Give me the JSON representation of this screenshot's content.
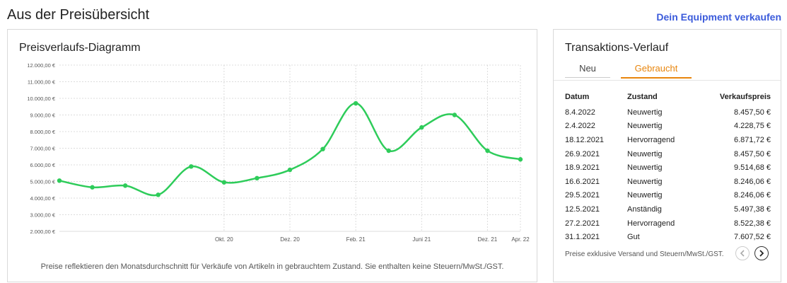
{
  "header": {
    "title": "Aus der Preisübersicht",
    "sell_link": "Dein Equipment verkaufen"
  },
  "chart_panel": {
    "title": "Preisverlaufs-Diagramm",
    "note": "Preise reflektieren den Monatsdurchschnitt für Verkäufe von Artikeln in gebrauchtem Zustand. Sie enthalten keine Steuern/MwSt./GST."
  },
  "chart_data": {
    "type": "line",
    "title": "",
    "xlabel": "",
    "ylabel": "",
    "ylim": [
      2000,
      12000
    ],
    "y_ticks": [
      "2.000,00 €",
      "3.000,00 €",
      "4.000,00 €",
      "5.000,00 €",
      "6.000,00 €",
      "7.000,00 €",
      "8.000,00 €",
      "9.000,00 €",
      "10.000,00 €",
      "11.000,00 €",
      "12.000,00 €"
    ],
    "x_tick_labels": [
      "Okt. 20",
      "Dez. 20",
      "Feb. 21",
      "Juni 21",
      "Dez. 21",
      "Apr. 22"
    ],
    "grid": true,
    "color": "#2ecc5a",
    "series": [
      {
        "values": [
          5050,
          4650,
          4750,
          4200,
          5900,
          4950,
          5200,
          5700,
          6950,
          9700,
          6850,
          8250,
          9000,
          6850,
          6330
        ]
      }
    ]
  },
  "tx_panel": {
    "title": "Transaktions-Verlauf",
    "tabs": {
      "new": "Neu",
      "used": "Gebraucht"
    },
    "columns": {
      "date": "Datum",
      "condition": "Zustand",
      "price": "Verkaufspreis"
    },
    "rows": [
      {
        "date": "8.4.2022",
        "condition": "Neuwertig",
        "price": "8.457,50 €"
      },
      {
        "date": "2.4.2022",
        "condition": "Neuwertig",
        "price": "4.228,75 €"
      },
      {
        "date": "18.12.2021",
        "condition": "Hervorragend",
        "price": "6.871,72 €"
      },
      {
        "date": "26.9.2021",
        "condition": "Neuwertig",
        "price": "8.457,50 €"
      },
      {
        "date": "18.9.2021",
        "condition": "Neuwertig",
        "price": "9.514,68 €"
      },
      {
        "date": "16.6.2021",
        "condition": "Neuwertig",
        "price": "8.246,06 €"
      },
      {
        "date": "29.5.2021",
        "condition": "Neuwertig",
        "price": "8.246,06 €"
      },
      {
        "date": "12.5.2021",
        "condition": "Anständig",
        "price": "5.497,38 €"
      },
      {
        "date": "27.2.2021",
        "condition": "Hervorragend",
        "price": "8.522,38 €"
      },
      {
        "date": "31.1.2021",
        "condition": "Gut",
        "price": "7.607,52 €"
      }
    ],
    "footer": "Preise exklusive Versand und Steuern/MwSt./GST.",
    "pager_prev_icon": "chevron-left-icon",
    "pager_next_icon": "chevron-right-icon"
  }
}
